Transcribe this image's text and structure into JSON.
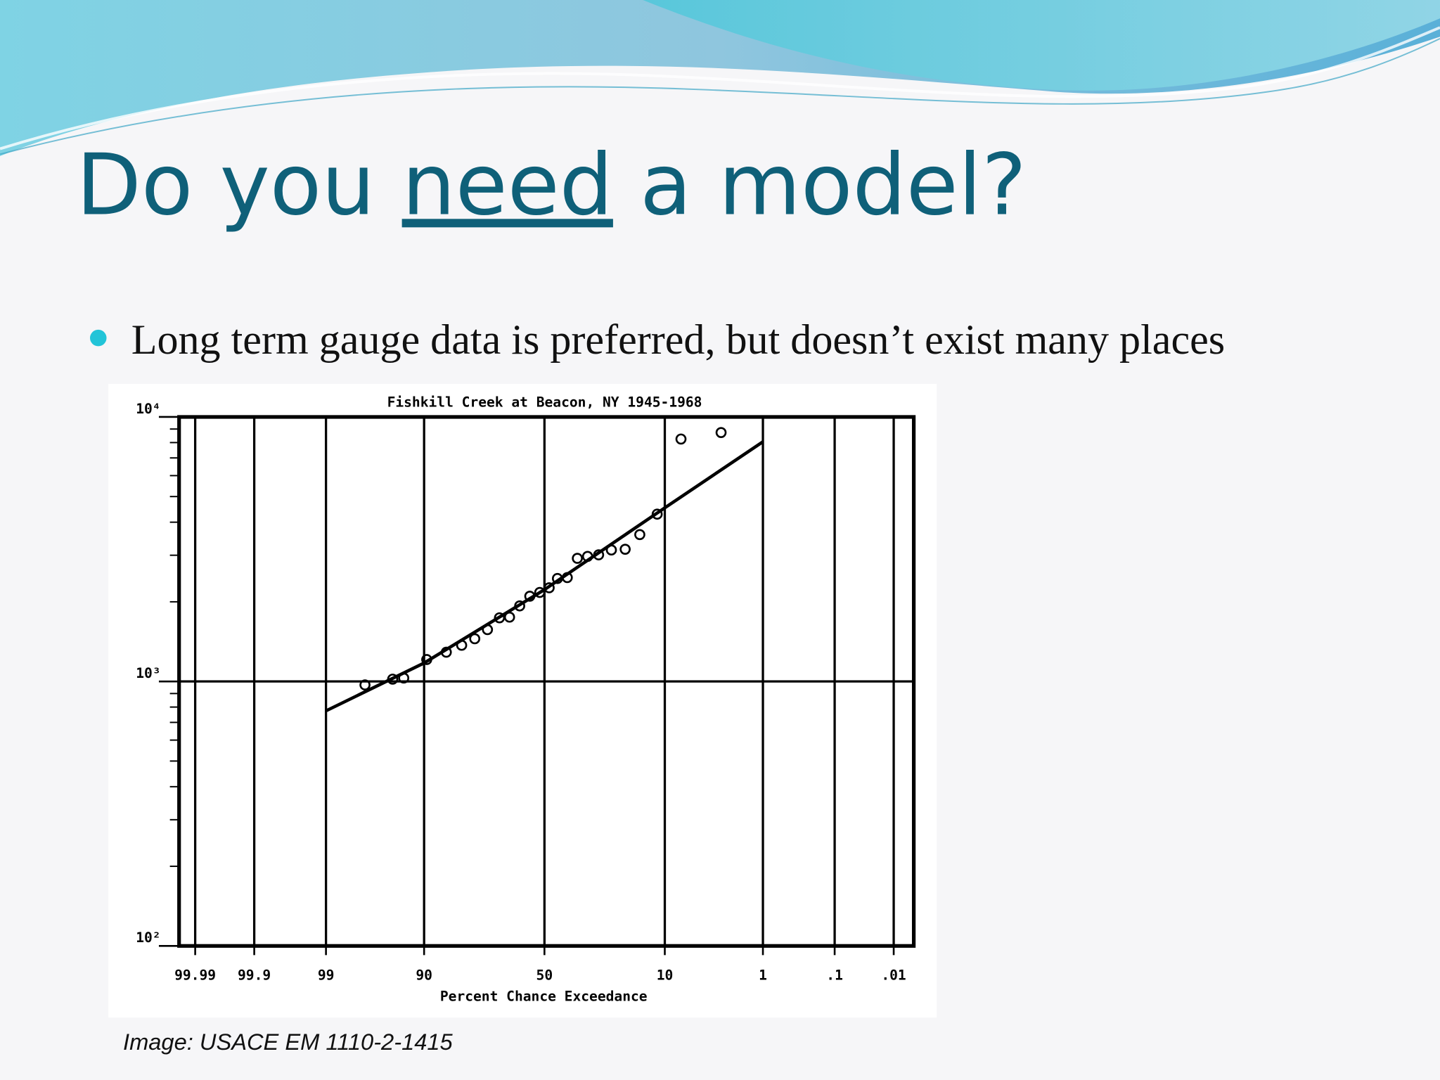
{
  "slide": {
    "title": [
      "Do you",
      "need",
      "a model?"
    ],
    "bullets": [
      "Long term gauge data is preferred, but doesn’t exist many places"
    ],
    "caption": "Image: USACE EM 1110-2-1415"
  },
  "chart_data": {
    "type": "scatter",
    "title": "Fishkill Creek at Beacon, NY 1945-1968",
    "x_label": "Percent Chance Exceedance",
    "x_scale": "normal-probability",
    "y_scale": "log",
    "grid": true,
    "xlim": [
      99.995,
      0.0042
    ],
    "ylim": [
      100,
      10000
    ],
    "xticks": [
      99.99,
      99.9,
      99,
      90,
      50,
      10,
      1,
      {
        "value": 0.1,
        "label": ".1"
      },
      {
        "value": 0.01,
        "label": ".01"
      }
    ],
    "yticks": [
      {
        "value": 100,
        "label": "10²"
      },
      {
        "value": 1000,
        "label": "10³"
      },
      {
        "value": 10000,
        "label": "10⁴"
      }
    ],
    "yminorticks": [
      200,
      300,
      400,
      500,
      600,
      700,
      800,
      900,
      2000,
      3000,
      4000,
      5000,
      6000,
      7000,
      8000,
      9000
    ],
    "series": [
      {
        "type": "scatter",
        "marker": "circle",
        "color": "#000000",
        "x": [
          97.2,
          94.7,
          93.3,
          89.5,
          85.2,
          81.1,
          77.1,
          72.8,
          68.4,
          64.5,
          60.4,
          56.2,
          52.0,
          48.0,
          44.5,
          40.4,
          36.3,
          32.3,
          28.2,
          23.8,
          19.5,
          15.5,
          11.5,
          7.3,
          3.0
        ],
        "values": [
          970,
          1020,
          1030,
          1210,
          1290,
          1370,
          1450,
          1570,
          1740,
          1750,
          1930,
          2100,
          2170,
          2260,
          2450,
          2470,
          2920,
          2970,
          3010,
          3140,
          3160,
          3590,
          4290,
          8250,
          8730
        ]
      },
      {
        "type": "line",
        "color": "#000000",
        "x": [
          99,
          90,
          50,
          10,
          1
        ],
        "values": [
          774,
          1174,
          2223,
          4532,
          8057
        ]
      }
    ]
  }
}
